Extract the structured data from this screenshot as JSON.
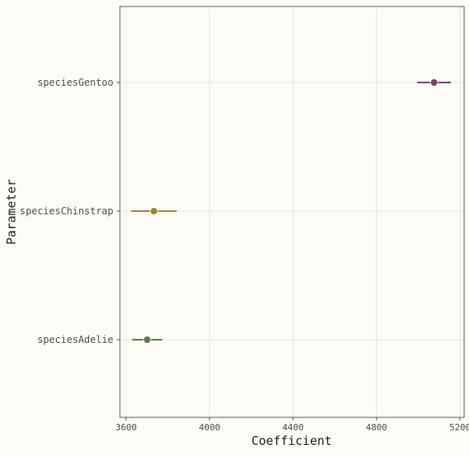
{
  "chart_data": {
    "type": "scatter",
    "xlabel": "Coefficient",
    "ylabel": "Parameter",
    "xlim": [
      3570,
      5220
    ],
    "x_ticks": [
      3600,
      4000,
      4400,
      4800,
      5200
    ],
    "categories": [
      "speciesGentoo",
      "speciesChinstrap",
      "speciesAdelie"
    ],
    "points": [
      {
        "name": "speciesGentoo",
        "estimate": 5076,
        "ci_low": 4995,
        "ci_high": 5157,
        "color": "#7B3F6E"
      },
      {
        "name": "speciesChinstrap",
        "estimate": 3733,
        "ci_low": 3624,
        "ci_high": 3842,
        "color": "#A0843A"
      },
      {
        "name": "speciesAdelie",
        "estimate": 3701,
        "ci_low": 3629,
        "ci_high": 3773,
        "color": "#5B7A47"
      }
    ],
    "grid": true,
    "background": "#FCFBF6",
    "gridline_color": "#E5E5E5",
    "panel_border_color": "#333333"
  }
}
